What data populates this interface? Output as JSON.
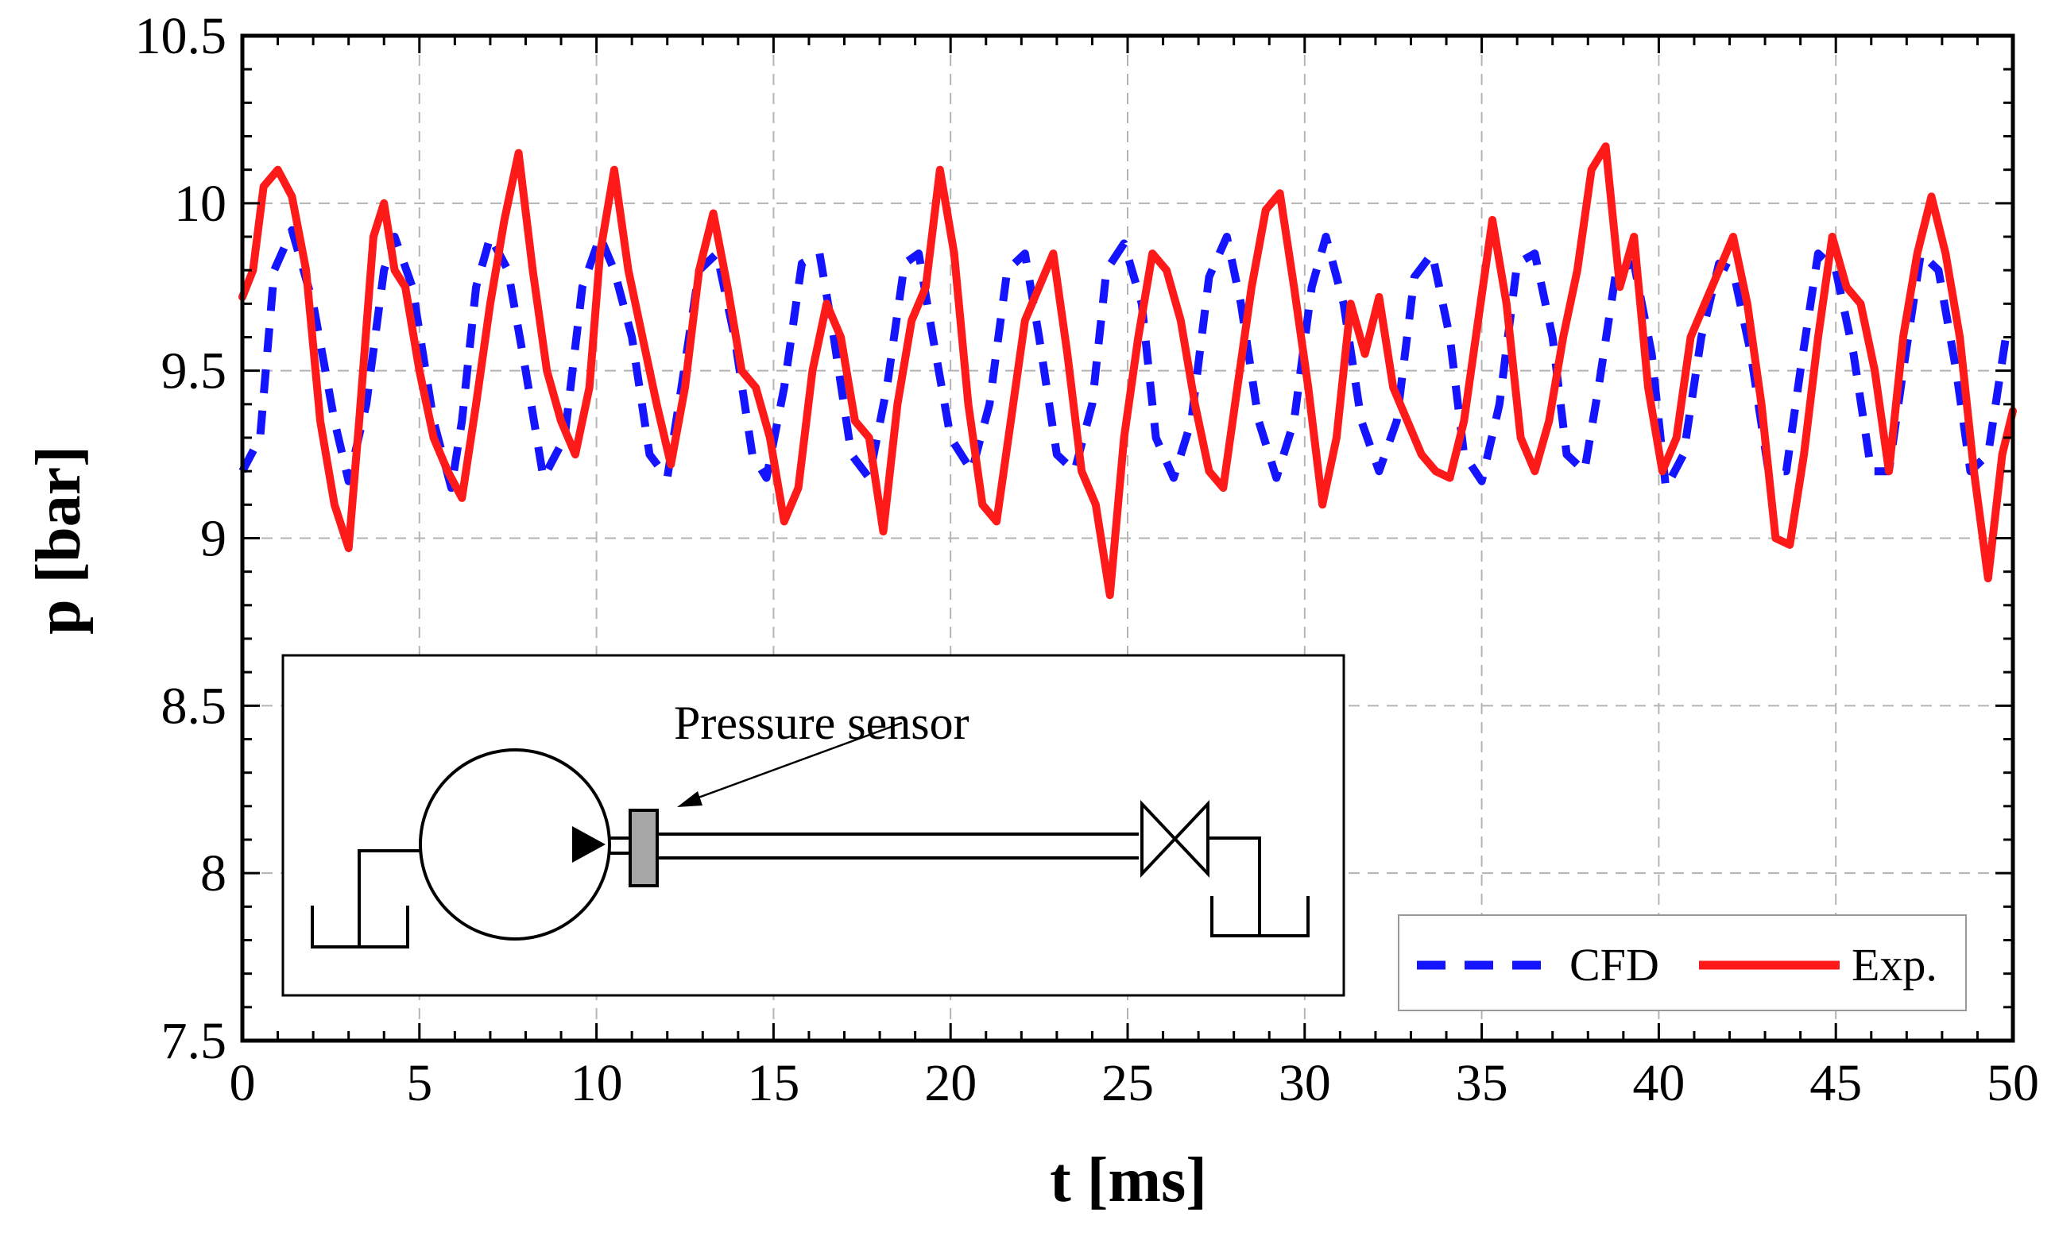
{
  "chart_data": {
    "type": "line",
    "title": "",
    "xlabel": "t [ms]",
    "ylabel": "p [bar]",
    "xlim": [
      0,
      50
    ],
    "ylim": [
      7.5,
      10.5
    ],
    "xticks": [
      0,
      5,
      10,
      15,
      20,
      25,
      30,
      35,
      40,
      45,
      50
    ],
    "yticks": [
      7.5,
      8,
      8.5,
      9,
      9.5,
      10,
      10.5
    ],
    "xtick_labels": [
      "0",
      "5",
      "10",
      "15",
      "20",
      "25",
      "30",
      "35",
      "40",
      "45",
      "50"
    ],
    "ytick_labels": [
      "7.5",
      "8",
      "8.5",
      "9",
      "9.5",
      "10",
      "10.5"
    ],
    "grid": true,
    "legend_position": "bottom-right",
    "series": [
      {
        "name": "CFD",
        "color": "#1414ff",
        "style": "dashed",
        "x": [
          0.0,
          0.5,
          0.9,
          1.4,
          2.0,
          2.6,
          3.0,
          3.5,
          4.0,
          4.3,
          4.8,
          5.4,
          5.9,
          6.2,
          6.6,
          7.0,
          7.5,
          8.0,
          8.5,
          9.1,
          9.6,
          10.1,
          10.5,
          11.0,
          11.5,
          12.0,
          12.4,
          12.9,
          13.4,
          13.9,
          14.4,
          14.8,
          15.3,
          15.8,
          16.3,
          16.7,
          17.2,
          17.7,
          18.2,
          18.7,
          19.1,
          19.5,
          20.0,
          20.6,
          21.1,
          21.6,
          22.1,
          22.5,
          23.0,
          23.5,
          24.0,
          24.4,
          24.9,
          25.4,
          25.8,
          26.3,
          26.8,
          27.3,
          27.8,
          28.2,
          28.7,
          29.2,
          29.7,
          30.2,
          30.6,
          31.1,
          31.6,
          32.1,
          32.6,
          33.1,
          33.6,
          34.1,
          34.5,
          35.0,
          35.5,
          36.0,
          36.5,
          37.0,
          37.4,
          37.9,
          38.3,
          38.8,
          39.3,
          39.8,
          40.2,
          40.7,
          41.2,
          41.7,
          42.1,
          42.6,
          43.1,
          43.6,
          44.0,
          44.5,
          45.0,
          45.5,
          46.0,
          46.5,
          46.9,
          47.4,
          47.9,
          48.4,
          48.8,
          49.3,
          49.8,
          50.0
        ],
        "y": [
          9.2,
          9.3,
          9.8,
          9.92,
          9.7,
          9.35,
          9.17,
          9.4,
          9.8,
          9.9,
          9.75,
          9.35,
          9.15,
          9.35,
          9.75,
          9.9,
          9.8,
          9.5,
          9.18,
          9.3,
          9.75,
          9.9,
          9.8,
          9.6,
          9.25,
          9.18,
          9.45,
          9.8,
          9.85,
          9.6,
          9.25,
          9.18,
          9.45,
          9.82,
          9.85,
          9.6,
          9.25,
          9.18,
          9.45,
          9.82,
          9.85,
          9.6,
          9.3,
          9.2,
          9.4,
          9.8,
          9.85,
          9.6,
          9.25,
          9.2,
          9.4,
          9.8,
          9.88,
          9.7,
          9.3,
          9.18,
          9.35,
          9.78,
          9.9,
          9.7,
          9.35,
          9.18,
          9.35,
          9.75,
          9.9,
          9.7,
          9.35,
          9.2,
          9.35,
          9.78,
          9.85,
          9.6,
          9.25,
          9.17,
          9.4,
          9.82,
          9.85,
          9.6,
          9.25,
          9.2,
          9.45,
          9.8,
          9.82,
          9.55,
          9.15,
          9.25,
          9.6,
          9.82,
          9.8,
          9.55,
          9.2,
          9.2,
          9.5,
          9.85,
          9.8,
          9.55,
          9.2,
          9.2,
          9.5,
          9.85,
          9.8,
          9.5,
          9.2,
          9.25,
          9.6,
          9.62
        ],
        "x_peaks_comment": ""
      },
      {
        "name": "Exp.",
        "color": "#ff1a1a",
        "style": "solid",
        "x": [
          0.0,
          0.3,
          0.6,
          1.0,
          1.4,
          1.8,
          2.2,
          2.6,
          3.0,
          3.3,
          3.7,
          4.0,
          4.3,
          4.6,
          5.0,
          5.4,
          5.8,
          6.2,
          6.6,
          7.0,
          7.4,
          7.8,
          8.2,
          8.6,
          9.0,
          9.4,
          9.8,
          10.1,
          10.5,
          10.9,
          11.3,
          11.7,
          12.1,
          12.5,
          12.9,
          13.3,
          13.7,
          14.1,
          14.5,
          14.9,
          15.3,
          15.7,
          16.1,
          16.5,
          16.9,
          17.3,
          17.7,
          18.1,
          18.5,
          18.9,
          19.3,
          19.7,
          20.1,
          20.5,
          20.9,
          21.3,
          21.7,
          22.1,
          22.5,
          22.9,
          23.3,
          23.7,
          24.1,
          24.5,
          24.9,
          25.3,
          25.7,
          26.1,
          26.5,
          26.9,
          27.3,
          27.7,
          28.1,
          28.5,
          28.9,
          29.3,
          29.7,
          30.1,
          30.5,
          30.9,
          31.3,
          31.7,
          32.1,
          32.5,
          32.9,
          33.3,
          33.7,
          34.1,
          34.5,
          34.9,
          35.3,
          35.7,
          36.1,
          36.5,
          36.9,
          37.3,
          37.7,
          38.1,
          38.5,
          38.9,
          39.3,
          39.7,
          40.1,
          40.5,
          40.9,
          41.3,
          41.7,
          42.1,
          42.5,
          42.9,
          43.3,
          43.7,
          44.1,
          44.5,
          44.9,
          45.3,
          45.7,
          46.1,
          46.5,
          46.9,
          47.3,
          47.7,
          48.1,
          48.5,
          48.9,
          49.3,
          49.7,
          50.0
        ],
        "y": [
          9.72,
          9.8,
          10.05,
          10.1,
          10.02,
          9.8,
          9.35,
          9.1,
          8.97,
          9.35,
          9.9,
          10.0,
          9.8,
          9.75,
          9.5,
          9.3,
          9.2,
          9.12,
          9.4,
          9.7,
          9.95,
          10.15,
          9.8,
          9.5,
          9.35,
          9.25,
          9.45,
          9.85,
          10.1,
          9.8,
          9.6,
          9.4,
          9.22,
          9.45,
          9.8,
          9.97,
          9.75,
          9.5,
          9.45,
          9.3,
          9.05,
          9.15,
          9.5,
          9.7,
          9.6,
          9.35,
          9.3,
          9.02,
          9.4,
          9.65,
          9.75,
          10.1,
          9.85,
          9.4,
          9.1,
          9.05,
          9.35,
          9.65,
          9.75,
          9.85,
          9.55,
          9.2,
          9.1,
          8.83,
          9.3,
          9.6,
          9.85,
          9.8,
          9.65,
          9.4,
          9.2,
          9.15,
          9.45,
          9.75,
          9.98,
          10.03,
          9.75,
          9.45,
          9.1,
          9.3,
          9.7,
          9.55,
          9.72,
          9.45,
          9.35,
          9.25,
          9.2,
          9.18,
          9.35,
          9.65,
          9.95,
          9.7,
          9.3,
          9.2,
          9.35,
          9.6,
          9.8,
          10.1,
          10.17,
          9.75,
          9.9,
          9.45,
          9.2,
          9.3,
          9.6,
          9.7,
          9.8,
          9.9,
          9.7,
          9.4,
          9.0,
          8.98,
          9.25,
          9.6,
          9.9,
          9.75,
          9.7,
          9.5,
          9.2,
          9.6,
          9.85,
          10.02,
          9.85,
          9.6,
          9.2,
          8.88,
          9.25,
          9.38
        ]
      }
    ],
    "inset": {
      "label": "Pressure sensor"
    }
  },
  "colors": {
    "cfd": "#1414ff",
    "exp": "#ff1a1a",
    "grid": "#b4b4b4",
    "sensor_fill": "#a6a6a6"
  }
}
